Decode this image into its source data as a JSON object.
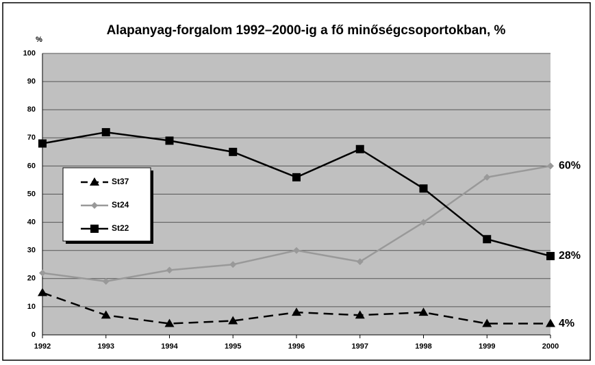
{
  "chart_data": {
    "type": "line",
    "title": "Alapanyag-forgalom 1992–2000-ig a fő minőségcsoportokban, %",
    "y_unit": "%",
    "categories": [
      "1992",
      "1993",
      "1994",
      "1995",
      "1996",
      "1997",
      "1998",
      "1999",
      "2000"
    ],
    "series": [
      {
        "name": "St37",
        "color": "#000000",
        "marker": "triangle",
        "dashed": true,
        "values": [
          15,
          7,
          4,
          5,
          8,
          7,
          8,
          4,
          4
        ],
        "end_label": "4%"
      },
      {
        "name": "St24",
        "color": "#999999",
        "marker": "diamond",
        "dashed": false,
        "values": [
          22,
          19,
          23,
          25,
          30,
          26,
          40,
          56,
          60
        ],
        "end_label": "60%"
      },
      {
        "name": "St22",
        "color": "#000000",
        "marker": "square",
        "dashed": false,
        "values": [
          68,
          72,
          69,
          65,
          56,
          66,
          52,
          34,
          28
        ],
        "end_label": "28%"
      }
    ],
    "ylim": [
      0,
      100
    ],
    "yticks": [
      0,
      10,
      20,
      30,
      40,
      50,
      60,
      70,
      80,
      90,
      100
    ],
    "grid": true,
    "plot_background": "#c0c0c0",
    "legend": "left"
  }
}
